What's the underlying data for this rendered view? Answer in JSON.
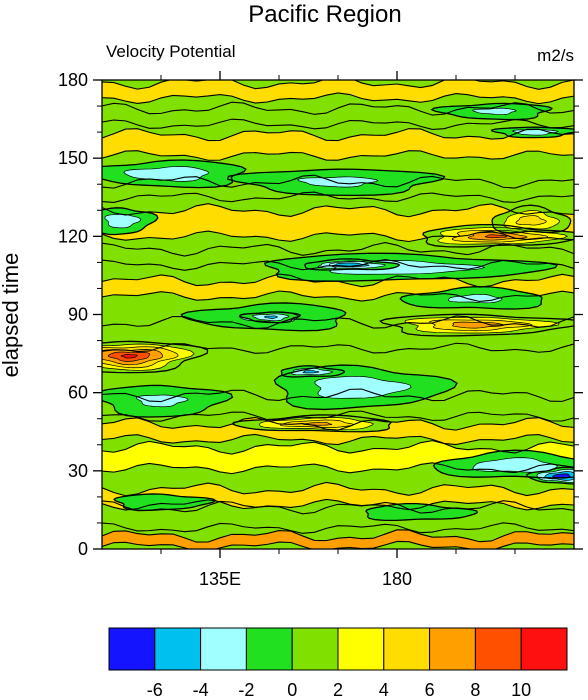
{
  "chart_data": {
    "type": "heatmap",
    "title": "Pacific Region",
    "subtitle_left": "Velocity Potential",
    "subtitle_right": "m2/s",
    "xlabel": "",
    "ylabel": "elapsed time",
    "x_ticks": [
      {
        "value": 135,
        "label": "135E"
      },
      {
        "value": 180,
        "label": "180"
      }
    ],
    "xlim": [
      105,
      225
    ],
    "ylim": [
      0,
      180
    ],
    "y_ticks": [
      0,
      30,
      60,
      90,
      120,
      150,
      180
    ],
    "contour_levels": [
      -6,
      -4,
      -2,
      0,
      2,
      4,
      6,
      8,
      10
    ],
    "colorbar_labels": [
      "-6",
      "-4",
      "-2",
      "0",
      "2",
      "4",
      "6",
      "8",
      "10"
    ],
    "colorbar_colors": [
      "#1414ff",
      "#00c0f0",
      "#a0ffff",
      "#20e020",
      "#80e000",
      "#ffff00",
      "#ffdd00",
      "#ffa000",
      "#ff5000",
      "#ff1010"
    ],
    "features": [
      {
        "type": "band",
        "y_center": 3,
        "y_halfwidth": 2,
        "value": 7
      },
      {
        "type": "band",
        "y_center": 12,
        "y_halfwidth": 4,
        "value": 1
      },
      {
        "type": "band",
        "y_center": 20,
        "y_halfwidth": 3,
        "value": 4
      },
      {
        "type": "band",
        "y_center": 35,
        "y_halfwidth": 4,
        "value": 3
      },
      {
        "type": "band",
        "y_center": 45,
        "y_halfwidth": 3,
        "value": 5
      },
      {
        "type": "band",
        "y_center": 55,
        "y_halfwidth": 4,
        "value": 1
      },
      {
        "type": "band",
        "y_center": 82,
        "y_halfwidth": 5,
        "value": 1
      },
      {
        "type": "band",
        "y_center": 100,
        "y_halfwidth": 3,
        "value": 4
      },
      {
        "type": "band",
        "y_center": 112,
        "y_halfwidth": 3,
        "value": 1
      },
      {
        "type": "band",
        "y_center": 125,
        "y_halfwidth": 5,
        "value": 5
      },
      {
        "type": "band",
        "y_center": 138,
        "y_halfwidth": 3,
        "value": 1
      },
      {
        "type": "band",
        "y_center": 155,
        "y_halfwidth": 4,
        "value": 4
      },
      {
        "type": "band",
        "y_center": 166,
        "y_halfwidth": 3,
        "value": 1
      },
      {
        "type": "band",
        "y_center": 176,
        "y_halfwidth": 3,
        "value": 4
      },
      {
        "type": "blob",
        "x": 112,
        "y": 74,
        "rx": 18,
        "ry": 6,
        "value": 10
      },
      {
        "type": "blob",
        "x": 200,
        "y": 86,
        "rx": 24,
        "ry": 4,
        "value": 7
      },
      {
        "type": "blob",
        "x": 205,
        "y": 120,
        "rx": 20,
        "ry": 4,
        "value": 8
      },
      {
        "type": "blob",
        "x": 214,
        "y": 126,
        "rx": 10,
        "ry": 5,
        "value": 5
      },
      {
        "type": "blob",
        "x": 160,
        "y": 48,
        "rx": 20,
        "ry": 3,
        "value": 6
      },
      {
        "type": "blob",
        "x": 122,
        "y": 144,
        "rx": 20,
        "ry": 5,
        "value": -3
      },
      {
        "type": "blob",
        "x": 165,
        "y": 141,
        "rx": 25,
        "ry": 5,
        "value": -2
      },
      {
        "type": "blob",
        "x": 110,
        "y": 126,
        "rx": 8,
        "ry": 5,
        "value": -3
      },
      {
        "type": "blob",
        "x": 180,
        "y": 108,
        "rx": 36,
        "ry": 5,
        "value": -3
      },
      {
        "type": "blob",
        "x": 168,
        "y": 109,
        "rx": 12,
        "ry": 2,
        "value": -5
      },
      {
        "type": "blob",
        "x": 200,
        "y": 96,
        "rx": 18,
        "ry": 4,
        "value": -2
      },
      {
        "type": "blob",
        "x": 148,
        "y": 89,
        "rx": 20,
        "ry": 5,
        "value": -2
      },
      {
        "type": "blob",
        "x": 148,
        "y": 89,
        "rx": 7,
        "ry": 2,
        "value": -4
      },
      {
        "type": "blob",
        "x": 120,
        "y": 57,
        "rx": 16,
        "ry": 6,
        "value": -2
      },
      {
        "type": "blob",
        "x": 170,
        "y": 62,
        "rx": 22,
        "ry": 8,
        "value": -3
      },
      {
        "type": "blob",
        "x": 158,
        "y": 68,
        "rx": 8,
        "ry": 2,
        "value": -4
      },
      {
        "type": "blob",
        "x": 210,
        "y": 32,
        "rx": 20,
        "ry": 5,
        "value": -3
      },
      {
        "type": "blob",
        "x": 222,
        "y": 28,
        "rx": 8,
        "ry": 3,
        "value": -7
      },
      {
        "type": "blob",
        "x": 205,
        "y": 168,
        "rx": 14,
        "ry": 3,
        "value": -2
      },
      {
        "type": "blob",
        "x": 215,
        "y": 160,
        "rx": 10,
        "ry": 2,
        "value": -3
      },
      {
        "type": "blob",
        "x": 120,
        "y": 18,
        "rx": 12,
        "ry": 3,
        "value": -1
      },
      {
        "type": "blob",
        "x": 185,
        "y": 14,
        "rx": 14,
        "ry": 3,
        "value": -1
      }
    ]
  }
}
